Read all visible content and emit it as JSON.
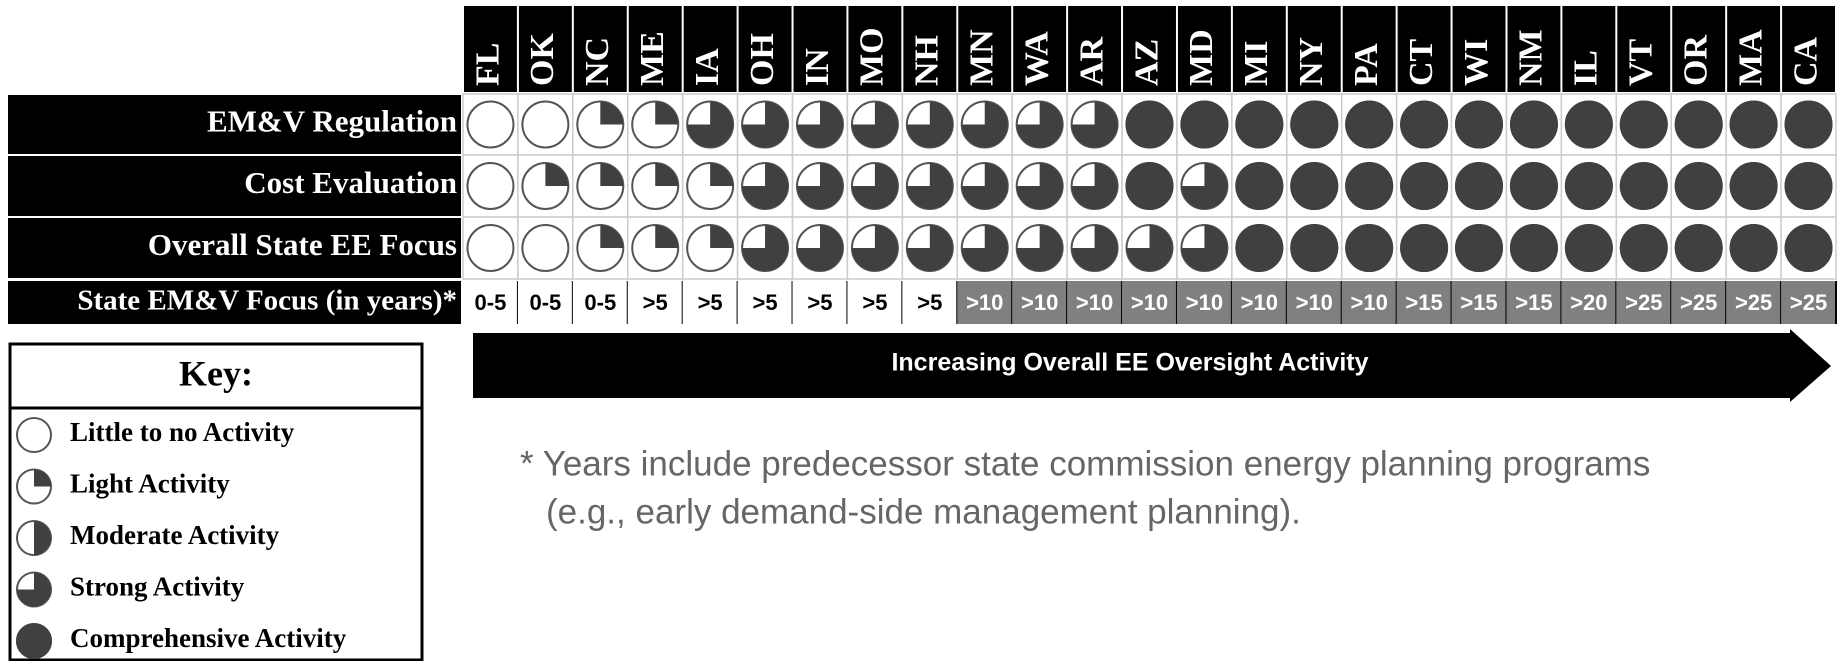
{
  "states": [
    "FL",
    "OK",
    "NC",
    "ME",
    "IA",
    "OH",
    "IN",
    "MO",
    "NH",
    "MN",
    "WA",
    "AR",
    "AZ",
    "MD",
    "MI",
    "NY",
    "PA",
    "CT",
    "WI",
    "NM",
    "IL",
    "VT",
    "OR",
    "MA",
    "CA"
  ],
  "rows": [
    {
      "label": "EM&V Regulation",
      "levels": [
        0,
        0,
        1,
        1,
        3,
        3,
        3,
        3,
        3,
        3,
        3,
        3,
        4,
        4,
        4,
        4,
        4,
        4,
        4,
        4,
        4,
        4,
        4,
        4,
        4
      ]
    },
    {
      "label": "Cost Evaluation",
      "levels": [
        0,
        1,
        1,
        1,
        1,
        3,
        3,
        3,
        3,
        3,
        3,
        3,
        4,
        3,
        4,
        4,
        4,
        4,
        4,
        4,
        4,
        4,
        4,
        4,
        4
      ]
    },
    {
      "label": "Overall State EE Focus",
      "levels": [
        0,
        0,
        1,
        1,
        1,
        3,
        3,
        3,
        3,
        3,
        3,
        3,
        3,
        3,
        4,
        4,
        4,
        4,
        4,
        4,
        4,
        4,
        4,
        4,
        4
      ]
    }
  ],
  "years_row": {
    "label": "State EM&V Focus (in years)*",
    "values": [
      "0-5",
      "0-5",
      "0-5",
      ">5",
      ">5",
      ">5",
      ">5",
      ">5",
      ">5",
      ">10",
      ">10",
      ">10",
      ">10",
      ">10",
      ">10",
      ">10",
      ">10",
      ">15",
      ">15",
      ">15",
      ">20",
      ">25",
      ">25",
      ">25",
      ">25"
    ]
  },
  "arrow_label": "Increasing Overall EE Oversight Activity",
  "footnote": [
    "* Years include predecessor state commission energy planning programs",
    "(e.g., early demand-side management planning)."
  ],
  "key": {
    "title": "Key:",
    "items": [
      {
        "level": 0,
        "label": "Little to no Activity"
      },
      {
        "level": 1,
        "label": "Light Activity"
      },
      {
        "level": 2,
        "label": "Moderate Activity"
      },
      {
        "level": 3,
        "label": "Strong Activity"
      },
      {
        "level": 4,
        "label": "Comprehensive Activity"
      }
    ]
  }
}
